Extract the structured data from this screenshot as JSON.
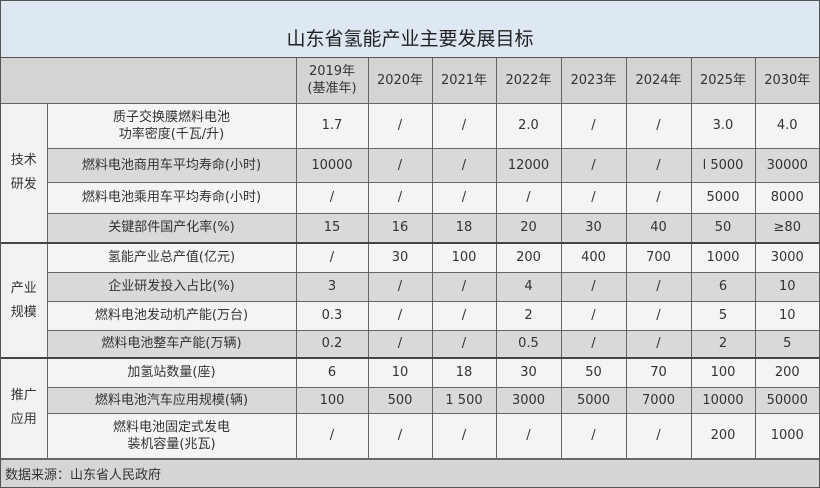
{
  "title": "山东省氢能产业主要发展目标",
  "columns": [
    "2019年\n(基准年)",
    "2020年",
    "2021年",
    "2022年",
    "2023年",
    "2024年",
    "2025年",
    "2030年"
  ],
  "groups": [
    {
      "label": "技术\n研发",
      "rows": [
        {
          "metric": "质子交换膜燃料电池\n功率密度(千瓦/升)",
          "values": [
            "1.7",
            "/",
            "/",
            "2.0",
            "/",
            "/",
            "3.0",
            "4.0"
          ]
        },
        {
          "metric": "燃料电池商用车平均寿命(小时)",
          "values": [
            "10000",
            "/",
            "/",
            "12000",
            "/",
            "/",
            "l 5000",
            "30000"
          ]
        },
        {
          "metric": "燃料电池乘用车平均寿命(小时)",
          "values": [
            "/",
            "/",
            "/",
            "/",
            "/",
            "/",
            "5000",
            "8000"
          ]
        },
        {
          "metric": "关键部件国产化率(%)",
          "values": [
            "15",
            "16",
            "18",
            "20",
            "30",
            "40",
            "50",
            "≥80"
          ]
        }
      ]
    },
    {
      "label": "产业\n规模",
      "rows": [
        {
          "metric": "氢能产业总产值(亿元)",
          "values": [
            "/",
            "30",
            "100",
            "200",
            "400",
            "700",
            "1000",
            "3000"
          ]
        },
        {
          "metric": "企业研发投入占比(%)",
          "values": [
            "3",
            "/",
            "/",
            "4",
            "/",
            "/",
            "6",
            "10"
          ]
        },
        {
          "metric": "燃料电池发动机产能(万台)",
          "values": [
            "0.3",
            "/",
            "/",
            "2",
            "/",
            "/",
            "5",
            "10"
          ]
        },
        {
          "metric": "燃料电池整车产能(万辆)",
          "values": [
            "0.2",
            "/",
            "/",
            "0.5",
            "/",
            "/",
            "2",
            "5"
          ]
        }
      ]
    },
    {
      "label": "推广\n应用",
      "rows": [
        {
          "metric": "加氢站数量(座)",
          "values": [
            "6",
            "10",
            "18",
            "30",
            "50",
            "70",
            "100",
            "200"
          ]
        },
        {
          "metric": "燃料电池汽车应用规模(辆)",
          "values": [
            "100",
            "500",
            "1 500",
            "3000",
            "5000",
            "7000",
            "10000",
            "50000"
          ]
        },
        {
          "metric": "燃料电池固定式发电\n装机容量(兆瓦)",
          "values": [
            "/",
            "/",
            "/",
            "/",
            "/",
            "/",
            "200",
            "1000"
          ]
        }
      ]
    }
  ],
  "footer": "数据来源：山东省人民政府"
}
